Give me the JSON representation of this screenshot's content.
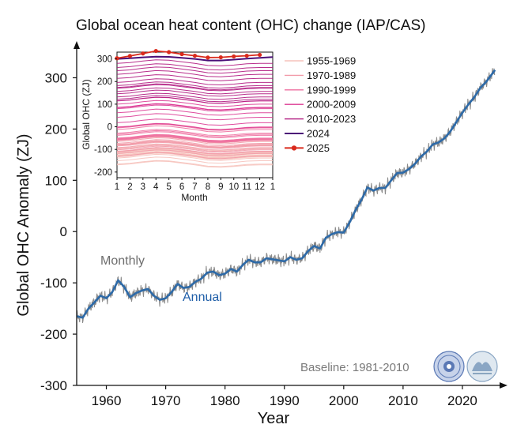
{
  "chart_data": [
    {
      "type": "line",
      "title": "Global ocean heat content (OHC) change (IAP/CAS)",
      "xlabel": "Year",
      "ylabel": "Global OHC Anomaly (ZJ)",
      "xlim": [
        1955,
        2026
      ],
      "ylim": [
        -300,
        350
      ],
      "xticks": [
        "1960",
        "1970",
        "1980",
        "1990",
        "2000",
        "2010",
        "2020"
      ],
      "yticks": [
        "-300",
        "-200",
        "-100",
        "0",
        "100",
        "200",
        "300"
      ],
      "annotations": {
        "monthly": "Monthly",
        "annual": "Annual",
        "baseline": "Baseline: 1981-2010"
      },
      "colors": {
        "monthly": "#8a8a8a",
        "annual": "#2d6aa8",
        "monthly_label": "#6e6e6e",
        "annual_label": "#1f5ea8"
      },
      "series": [
        {
          "name": "Annual",
          "x": [
            1955,
            1956,
            1957,
            1958,
            1959,
            1960,
            1961,
            1962,
            1963,
            1964,
            1965,
            1966,
            1967,
            1968,
            1969,
            1970,
            1971,
            1972,
            1973,
            1974,
            1975,
            1976,
            1977,
            1978,
            1979,
            1980,
            1981,
            1982,
            1983,
            1984,
            1985,
            1986,
            1987,
            1988,
            1989,
            1990,
            1991,
            1992,
            1993,
            1994,
            1995,
            1996,
            1997,
            1998,
            1999,
            2000,
            2001,
            2002,
            2003,
            2004,
            2005,
            2006,
            2007,
            2008,
            2009,
            2010,
            2011,
            2012,
            2013,
            2014,
            2015,
            2016,
            2017,
            2018,
            2019,
            2020,
            2021,
            2022,
            2023,
            2024,
            2025.5
          ],
          "y": [
            -165,
            -168,
            -150,
            -138,
            -125,
            -130,
            -118,
            -95,
            -108,
            -128,
            -120,
            -115,
            -112,
            -125,
            -133,
            -130,
            -118,
            -102,
            -110,
            -108,
            -98,
            -92,
            -80,
            -78,
            -85,
            -82,
            -73,
            -78,
            -65,
            -55,
            -60,
            -60,
            -52,
            -54,
            -56,
            -58,
            -50,
            -55,
            -52,
            -38,
            -28,
            -33,
            -12,
            -5,
            -1,
            -2,
            18,
            42,
            62,
            86,
            80,
            85,
            85,
            100,
            114,
            115,
            122,
            132,
            146,
            156,
            170,
            174,
            182,
            196,
            214,
            232,
            248,
            262,
            280,
            292,
            315
          ]
        }
      ]
    },
    {
      "type": "line",
      "xlabel": "Month",
      "ylabel": "Global OHC (ZJ)",
      "xticks": [
        "1",
        "2",
        "3",
        "4",
        "5",
        "6",
        "7",
        "8",
        "9",
        "10",
        "11",
        "12",
        "1"
      ],
      "yticks": [
        "-200",
        "-100",
        "0",
        "100",
        "200",
        "300"
      ],
      "ylim": [
        -225,
        330
      ],
      "seasonal_shape": [
        0,
        2,
        6,
        9,
        8,
        4,
        0,
        -5,
        -6,
        -4,
        -1,
        0,
        0
      ],
      "legend": [
        {
          "label": "1955-1969",
          "color": "#f6c2bb"
        },
        {
          "label": "1970-1989",
          "color": "#f29ba9"
        },
        {
          "label": "1990-1999",
          "color": "#ee6fa0"
        },
        {
          "label": "2000-2009",
          "color": "#dc3a93"
        },
        {
          "label": "2010-2023",
          "color": "#b0177f"
        },
        {
          "label": "2024",
          "color": "#4b0f78"
        },
        {
          "label": "2025",
          "color": "#d92a1c"
        }
      ],
      "series": [
        {
          "name": "2024",
          "values": [
            300,
            303,
            307,
            310,
            309,
            305,
            300,
            293,
            293,
            297,
            301,
            305,
            308
          ]
        },
        {
          "name": "2025",
          "values": [
            303,
            313,
            324,
            335,
            330,
            321,
            314,
            306,
            307,
            311,
            314,
            318
          ]
        }
      ]
    }
  ]
}
